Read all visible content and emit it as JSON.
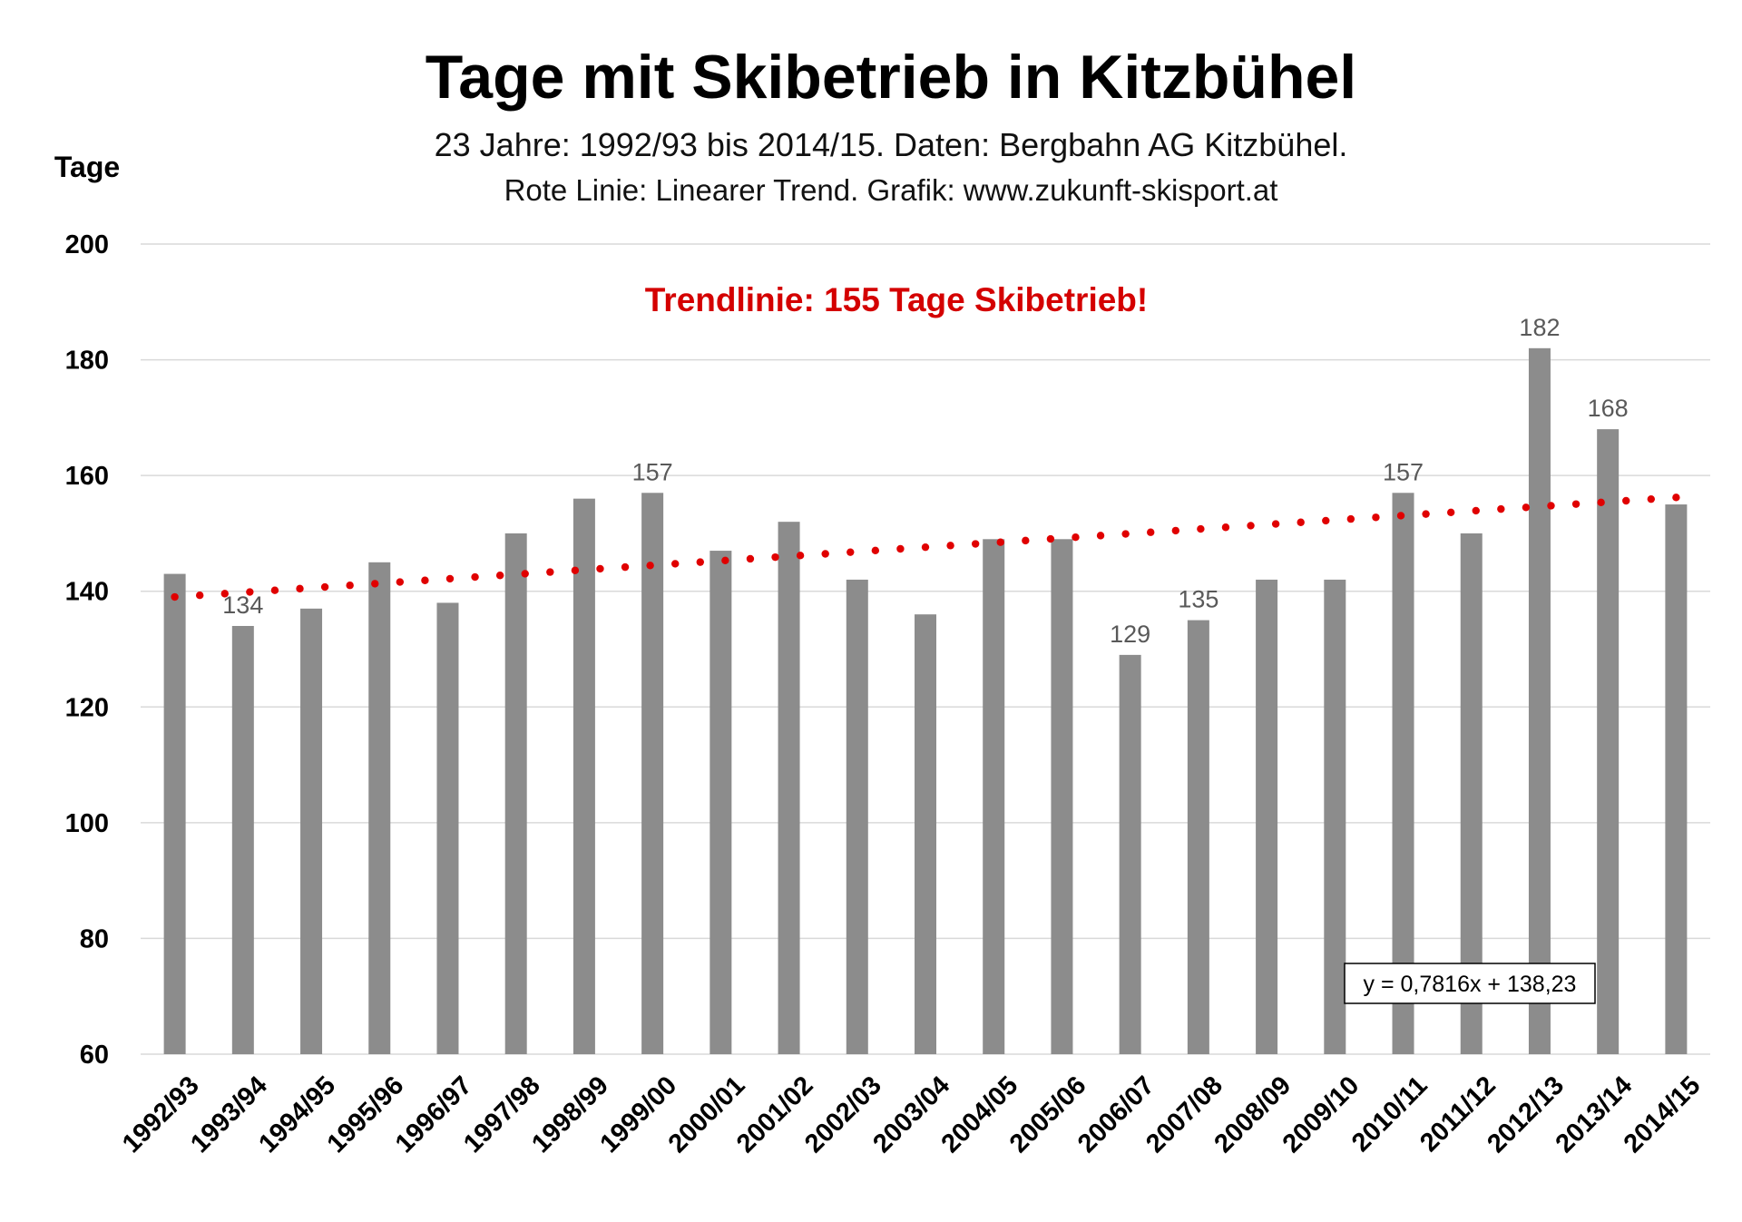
{
  "chart_data": {
    "type": "bar",
    "title": "Tage mit Skibetrieb in Kitzbühel",
    "subtitle": "23 Jahre: 1992/93 bis 2014/15. Daten: Bergbahn AG Kitzbühel.",
    "subtitle2": "Rote Linie: Linearer Trend. Grafik: www.zukunft-skisport.at",
    "ylabel": "Tage",
    "xlabel": "",
    "ylim": [
      60,
      200
    ],
    "yticks": [
      "60",
      "80",
      "100",
      "120",
      "140",
      "160",
      "180",
      "200"
    ],
    "categories": [
      "1992/93",
      "1993/94",
      "1994/95",
      "1995/96",
      "1996/97",
      "1997/98",
      "1998/99",
      "1999/00",
      "2000/01",
      "2001/02",
      "2002/03",
      "2003/04",
      "2004/05",
      "2005/06",
      "2006/07",
      "2007/08",
      "2008/09",
      "2009/10",
      "2010/11",
      "2011/12",
      "2012/13",
      "2013/14",
      "2014/15"
    ],
    "values": [
      143,
      134,
      137,
      145,
      138,
      150,
      156,
      157,
      147,
      152,
      142,
      136,
      149,
      149,
      129,
      135,
      142,
      142,
      157,
      150,
      182,
      168,
      155
    ],
    "data_labels": [
      {
        "category": "1993/94",
        "text": "134"
      },
      {
        "category": "1999/00",
        "text": "157"
      },
      {
        "category": "2006/07",
        "text": "129"
      },
      {
        "category": "2007/08",
        "text": "135"
      },
      {
        "category": "2010/11",
        "text": "157"
      },
      {
        "category": "2012/13",
        "text": "182"
      },
      {
        "category": "2013/14",
        "text": "168"
      }
    ],
    "trendline": {
      "type": "linear",
      "slope": 0.7816,
      "intercept": 138.23,
      "style": "dotted",
      "color": "#e00000",
      "equation_label": "y = 0,7816x + 138,23"
    },
    "annotation": "Trendlinie: 155 Tage Skibetrieb!",
    "bar_color": "#8c8c8c",
    "annotation_color": "#d40000",
    "grid": true,
    "legend": "none"
  }
}
